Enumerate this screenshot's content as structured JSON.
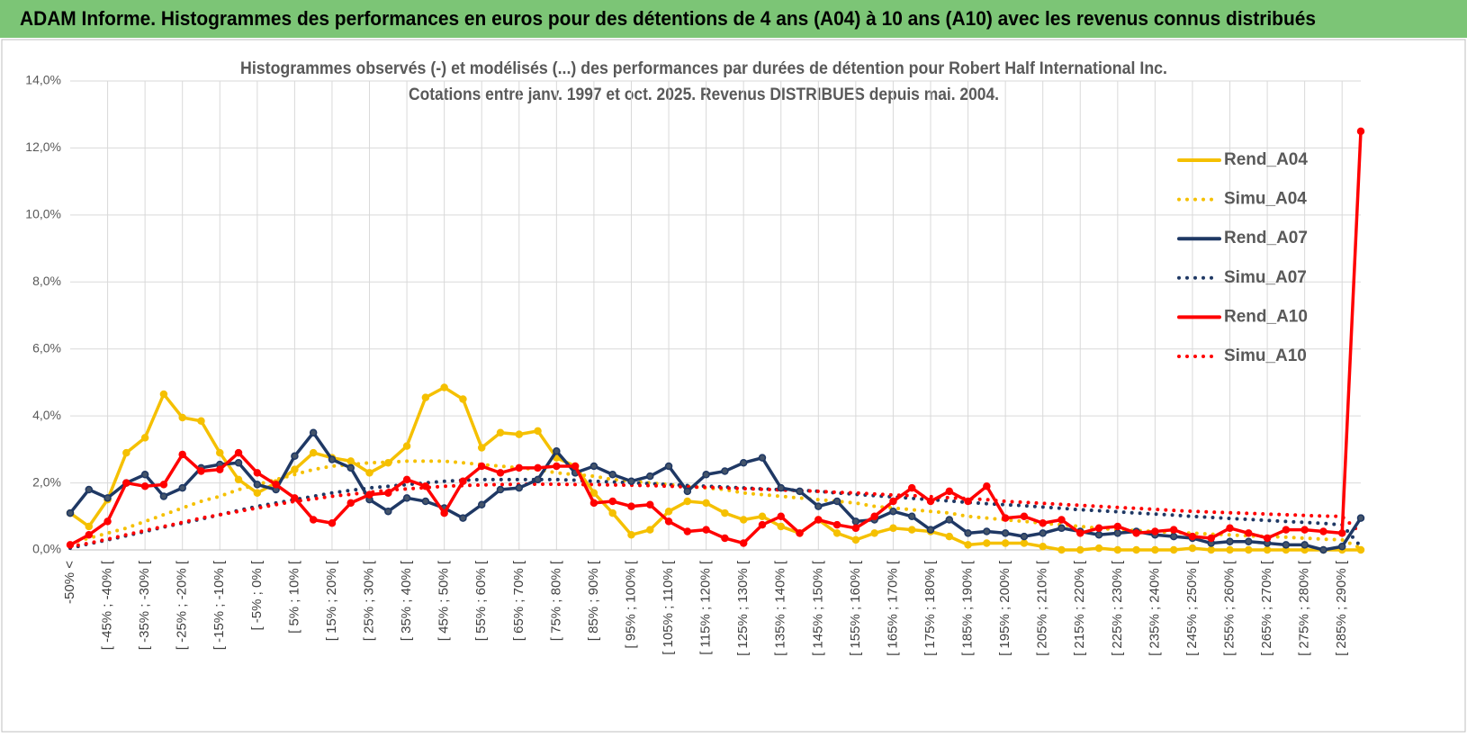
{
  "header": {
    "title": "ADAM Informe. Histogrammes des performances en euros pour des détentions de 4 ans (A04) à 10 ans (A10) avec les revenus connus distribués"
  },
  "chart_data": {
    "type": "line",
    "title": "Histogrammes observés (-) et modélisés (...) des performances par durées de détention pour Robert Half International Inc.",
    "subtitle": "Cotations entre janv. 1997 et oct. 2025.  Revenus DISTRIBUES depuis mai. 2004.",
    "categories": [
      "-50% <",
      null,
      "[ -45% ; -40% [",
      null,
      "[ -35% ; -30% [",
      null,
      "[ -25% ; -20% [",
      null,
      "[ -15% ; -10% [",
      null,
      "[ -5% ; 0% [",
      null,
      "[ 5% ; 10% [",
      null,
      "[ 15% ; 20% [",
      null,
      "[ 25% ; 30% [",
      null,
      "[ 35% ; 40% [",
      null,
      "[ 45% ; 50% [",
      null,
      "[ 55% ; 60% [",
      null,
      "[ 65% ; 70% [",
      null,
      "[ 75% ; 80% [",
      null,
      "[ 85% ; 90% [",
      null,
      "[ 95% ; 100% [",
      null,
      "[ 105% ; 110% [",
      null,
      "[ 115% ; 120% [",
      null,
      "[ 125% ; 130% [",
      null,
      "[ 135% ; 140% [",
      null,
      "[ 145% ; 150% [",
      null,
      "[ 155% ; 160% [",
      null,
      "[ 165% ; 170% [",
      null,
      "[ 175% ; 180% [",
      null,
      "[ 185% ; 190% [",
      null,
      "[ 195% ; 200% [",
      null,
      "[ 205% ; 210% [",
      null,
      "[ 215% ; 220% [",
      null,
      "[ 225% ; 230% [",
      null,
      "[ 235% ; 240% [",
      null,
      "[ 245% ; 250% [",
      null,
      "[ 255% ; 260% [",
      null,
      "[ 265% ; 270% [",
      null,
      "[ 275% ; 280% [",
      null,
      "[ 285% ; 290% [",
      null
    ],
    "series": [
      {
        "name": "Rend_A04",
        "color": "#f5c000",
        "line_style": "solid",
        "values": [
          1.1,
          0.7,
          1.5,
          2.9,
          3.35,
          4.65,
          3.95,
          3.85,
          2.9,
          2.1,
          1.7,
          2.0,
          2.4,
          2.9,
          2.75,
          2.65,
          2.3,
          2.6,
          3.1,
          4.55,
          4.85,
          4.5,
          3.05,
          3.5,
          3.45,
          3.55,
          2.75,
          2.5,
          1.7,
          1.1,
          0.45,
          0.6,
          1.15,
          1.45,
          1.4,
          1.1,
          0.9,
          1.0,
          0.7,
          0.5,
          0.9,
          0.5,
          0.3,
          0.5,
          0.65,
          0.6,
          0.55,
          0.4,
          0.15,
          0.2,
          0.2,
          0.2,
          0.1,
          0.0,
          0.0,
          0.05,
          0.0,
          0.0,
          0.0,
          0.0,
          0.05,
          0.0,
          0.0,
          0.0,
          0.0,
          0.0,
          0.0,
          0.0,
          0.0,
          0.0
        ]
      },
      {
        "name": "Simu_A04",
        "color": "#f5c000",
        "line_style": "dotted",
        "values": [
          0.2,
          0.35,
          0.5,
          0.65,
          0.85,
          1.05,
          1.25,
          1.45,
          1.6,
          1.8,
          1.95,
          2.1,
          2.25,
          2.4,
          2.5,
          2.55,
          2.6,
          2.62,
          2.65,
          2.65,
          2.65,
          2.6,
          2.55,
          2.5,
          2.45,
          2.4,
          2.3,
          2.25,
          2.2,
          2.1,
          2.05,
          2.0,
          1.95,
          1.9,
          1.85,
          1.8,
          1.7,
          1.65,
          1.6,
          1.55,
          1.5,
          1.45,
          1.4,
          1.3,
          1.25,
          1.2,
          1.15,
          1.1,
          1.0,
          0.95,
          0.9,
          0.85,
          0.8,
          0.75,
          0.7,
          0.65,
          0.6,
          0.58,
          0.55,
          0.52,
          0.5,
          0.47,
          0.45,
          0.42,
          0.4,
          0.38,
          0.35,
          0.32,
          0.3,
          0.05
        ]
      },
      {
        "name": "Rend_A07",
        "color": "#1f3864",
        "line_style": "solid",
        "values": [
          1.1,
          1.8,
          1.55,
          2.0,
          2.25,
          1.6,
          1.85,
          2.45,
          2.55,
          2.6,
          1.95,
          1.8,
          2.8,
          3.5,
          2.7,
          2.45,
          1.5,
          1.15,
          1.55,
          1.45,
          1.25,
          0.95,
          1.35,
          1.8,
          1.85,
          2.1,
          2.95,
          2.3,
          2.5,
          2.25,
          2.05,
          2.2,
          2.5,
          1.75,
          2.25,
          2.35,
          2.6,
          2.75,
          1.85,
          1.75,
          1.3,
          1.45,
          0.85,
          0.9,
          1.15,
          1.0,
          0.6,
          0.9,
          0.5,
          0.55,
          0.5,
          0.4,
          0.5,
          0.65,
          0.55,
          0.45,
          0.5,
          0.55,
          0.45,
          0.4,
          0.35,
          0.2,
          0.25,
          0.25,
          0.2,
          0.15,
          0.15,
          0.0,
          0.1,
          0.95
        ]
      },
      {
        "name": "Simu_A07",
        "color": "#1f3864",
        "line_style": "dotted",
        "values": [
          0.05,
          0.18,
          0.3,
          0.42,
          0.55,
          0.68,
          0.8,
          0.92,
          1.05,
          1.18,
          1.3,
          1.4,
          1.5,
          1.6,
          1.7,
          1.78,
          1.85,
          1.9,
          1.95,
          2.0,
          2.05,
          2.08,
          2.1,
          2.1,
          2.1,
          2.1,
          2.1,
          2.08,
          2.05,
          2.03,
          2.0,
          1.98,
          1.95,
          1.92,
          1.9,
          1.88,
          1.85,
          1.82,
          1.8,
          1.78,
          1.75,
          1.7,
          1.66,
          1.62,
          1.58,
          1.54,
          1.5,
          1.46,
          1.42,
          1.38,
          1.35,
          1.32,
          1.28,
          1.24,
          1.2,
          1.17,
          1.14,
          1.1,
          1.07,
          1.04,
          1.0,
          0.97,
          0.94,
          0.91,
          0.88,
          0.85,
          0.82,
          0.79,
          0.75,
          0.1
        ]
      },
      {
        "name": "Rend_A10",
        "color": "#ff0000",
        "line_style": "solid",
        "values": [
          0.15,
          0.45,
          0.85,
          2.0,
          1.9,
          1.95,
          2.85,
          2.35,
          2.4,
          2.9,
          2.3,
          1.95,
          1.55,
          0.9,
          0.8,
          1.4,
          1.65,
          1.7,
          2.1,
          1.9,
          1.1,
          2.05,
          2.5,
          2.3,
          2.45,
          2.45,
          2.5,
          2.5,
          1.4,
          1.45,
          1.3,
          1.35,
          0.85,
          0.55,
          0.6,
          0.35,
          0.2,
          0.75,
          1.0,
          0.5,
          0.9,
          0.75,
          0.65,
          1.0,
          1.45,
          1.85,
          1.45,
          1.75,
          1.45,
          1.9,
          0.95,
          1.0,
          0.8,
          0.9,
          0.5,
          0.65,
          0.7,
          0.5,
          0.55,
          0.6,
          0.4,
          0.35,
          0.65,
          0.5,
          0.35,
          0.6,
          0.6,
          0.55,
          0.5,
          12.5
        ]
      },
      {
        "name": "Simu_A10",
        "color": "#ff0000",
        "line_style": "dotted",
        "values": [
          0.1,
          0.2,
          0.32,
          0.45,
          0.58,
          0.7,
          0.82,
          0.95,
          1.05,
          1.15,
          1.25,
          1.35,
          1.45,
          1.52,
          1.6,
          1.66,
          1.72,
          1.78,
          1.82,
          1.86,
          1.9,
          1.92,
          1.94,
          1.95,
          1.96,
          1.96,
          1.96,
          1.95,
          1.95,
          1.94,
          1.93,
          1.92,
          1.9,
          1.88,
          1.87,
          1.85,
          1.83,
          1.81,
          1.79,
          1.77,
          1.75,
          1.72,
          1.7,
          1.67,
          1.64,
          1.62,
          1.59,
          1.56,
          1.53,
          1.5,
          1.45,
          1.42,
          1.39,
          1.36,
          1.33,
          1.3,
          1.27,
          1.24,
          1.21,
          1.18,
          1.15,
          1.13,
          1.11,
          1.09,
          1.07,
          1.05,
          1.03,
          1.01,
          1.0,
          0.5
        ]
      }
    ],
    "ylim": [
      0,
      14
    ],
    "yticks": [
      {
        "value": 0,
        "label": "0,0%"
      },
      {
        "value": 2,
        "label": "2,0%"
      },
      {
        "value": 4,
        "label": "4,0%"
      },
      {
        "value": 6,
        "label": "6,0%"
      },
      {
        "value": 8,
        "label": "8,0%"
      },
      {
        "value": 10,
        "label": "10,0%"
      },
      {
        "value": 12,
        "label": "12,0%"
      },
      {
        "value": 14,
        "label": "14,0%"
      }
    ],
    "grid": true,
    "legend": "right"
  }
}
